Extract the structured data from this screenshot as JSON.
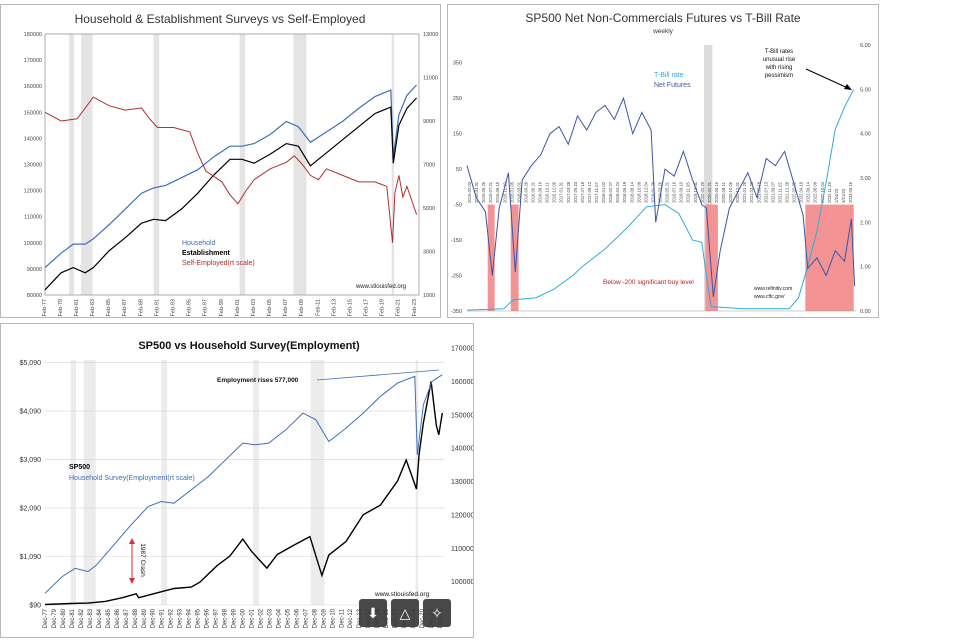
{
  "chart_data": [
    {
      "type": "line",
      "title": "Household & Establishment Surveys vs Self-Employed",
      "left_ticks": [
        "80000",
        "90000",
        "100000",
        "110000",
        "120000",
        "130000",
        "140000",
        "150000",
        "160000",
        "170000",
        "180000"
      ],
      "right_ticks": [
        "1000",
        "3000",
        "5000",
        "7000",
        "9000",
        "11000",
        "13000"
      ],
      "x_ticks": [
        "Feb-77",
        "Feb-79",
        "Feb-81",
        "Feb-83",
        "Feb-85",
        "Feb-87",
        "Feb-89",
        "Feb-91",
        "Feb-93",
        "Feb-95",
        "Feb-97",
        "Feb-99",
        "Feb-01",
        "Feb-03",
        "Feb-05",
        "Feb-07",
        "Feb-09",
        "Feb-11",
        "Feb-13",
        "Feb-15",
        "Feb-17",
        "Feb-19",
        "Feb-21",
        "Feb-23"
      ],
      "ylim": [
        80000,
        180000
      ],
      "y2lim": [
        1000,
        13000
      ],
      "recessions": [
        [
          1980.0,
          1980.6
        ],
        [
          1981.5,
          1982.9
        ],
        [
          1990.5,
          1991.2
        ],
        [
          2001.2,
          2001.9
        ],
        [
          2007.9,
          2009.5
        ],
        [
          2020.1,
          2020.4
        ]
      ],
      "series": [
        {
          "name": "Household",
          "axis": "left",
          "color": "#3e6fb6",
          "x": [
            1977,
            1979,
            1980.5,
            1982,
            1983,
            1985,
            1987,
            1989,
            1990.5,
            1992,
            1994,
            1996,
            1998,
            2000,
            2001.5,
            2003,
            2005,
            2007,
            2008.5,
            2010,
            2012,
            2014,
            2016,
            2018,
            2020,
            2020.3,
            2021,
            2022,
            2023.2
          ],
          "y": [
            90500,
            96000,
            99500,
            99500,
            101500,
            107000,
            113000,
            119000,
            121000,
            122000,
            125000,
            128000,
            133000,
            137000,
            137000,
            138000,
            141500,
            146500,
            144500,
            138500,
            142500,
            146500,
            151500,
            156000,
            158500,
            133000,
            149000,
            156500,
            160500
          ]
        },
        {
          "name": "Establishment",
          "axis": "left",
          "color": "#000000",
          "x": [
            1977,
            1979,
            1980.5,
            1982,
            1983,
            1985,
            1987,
            1989,
            1990.5,
            1992,
            1994,
            1996,
            1998,
            2000,
            2001.5,
            2003,
            2005,
            2007,
            2008.5,
            2010,
            2012,
            2014,
            2016,
            2018,
            2020,
            2020.3,
            2021,
            2022,
            2023.2
          ],
          "y": [
            82000,
            88500,
            90500,
            88500,
            90500,
            97000,
            102000,
            107500,
            109000,
            108500,
            113000,
            119000,
            126000,
            132000,
            132000,
            130500,
            134000,
            138000,
            137000,
            129500,
            134500,
            139500,
            144500,
            149500,
            152000,
            130500,
            145000,
            151500,
            155500
          ]
        },
        {
          "name": "Self-Employed(rt scale)",
          "axis": "right",
          "color": "#b03030",
          "x": [
            1977,
            1979,
            1981,
            1983,
            1985,
            1987,
            1989,
            1990,
            1991,
            1993,
            1995,
            1996,
            1997,
            1999,
            2000,
            2001,
            2002,
            2003,
            2005,
            2007,
            2008,
            2009,
            2010,
            2011,
            2012,
            2014,
            2016,
            2018,
            2019.5,
            2020.2,
            2020.5,
            2021,
            2021.5,
            2022,
            2023.2
          ],
          "y": [
            9400,
            9000,
            9100,
            10100,
            9700,
            9500,
            9600,
            9100,
            8700,
            8700,
            8500,
            7500,
            6700,
            6200,
            5600,
            5200,
            5800,
            6300,
            6800,
            7100,
            7400,
            7000,
            6500,
            6300,
            6800,
            6500,
            6200,
            6200,
            6000,
            3400,
            5700,
            6500,
            5500,
            6000,
            4700
          ]
        }
      ],
      "legend_labels": [
        "Household",
        "Establishment",
        "Self-Employed(rt scale)"
      ],
      "source": "www.stlouisfed.org"
    },
    {
      "type": "line",
      "title": "SP500 Net Non-Commercials Futures vs T-Bill Rate",
      "subtitle": "weekly",
      "left_ticks": [
        "-350",
        "-250",
        "-150",
        "-50",
        "50",
        "150",
        "250",
        "350"
      ],
      "right_ticks": [
        "0.00",
        "1.00",
        "2.00",
        "3.00",
        "4.00",
        "5.00",
        "6.00"
      ],
      "ylim": [
        -350,
        400
      ],
      "y2lim": [
        0,
        6
      ],
      "x_ticks": [
        "2015.02.03",
        "2015.03.31",
        "2015.05.26",
        "2015.07.21",
        "2015.09.15",
        "2015.11.10",
        "2016.01.05",
        "2016.03.01",
        "2016.04.26",
        "2016.06.21",
        "2016.08.16",
        "2016.10.11",
        "2016.12.06",
        "2017.01.31",
        "2017.03.28",
        "2017.05.23",
        "2017.07.18",
        "2017.09.12",
        "2017.11.07",
        "2018.01.02",
        "2018.02.27",
        "2018.04.24",
        "2018.06.19",
        "2018.08.14",
        "2018.10.09",
        "2018.12.04",
        "2019.01.29",
        "2019.03.26",
        "2019.05.21",
        "2019.07.16",
        "2019.09.10",
        "2019.11.05",
        "2019.12.31",
        "2020.02.25",
        "2020.04.21",
        "2020.06.16",
        "2020.08.11",
        "2020.10.06",
        "2020.12.01",
        "2021.01.26",
        "2021.03.23",
        "2021.05.18",
        "2021.07.13",
        "2021.09.07",
        "2021.11.02",
        "2021.12.28",
        "2022.02.22",
        "2022.04.19",
        "2022.06.14",
        "2022.08.09",
        "2022.10.04",
        "2022.11.29",
        "1/24/23",
        "3/21/23",
        "2023.05.16"
      ],
      "xlim": [
        2015.0,
        2023.45
      ],
      "shaded_gray": [
        [
          2020.15,
          2020.33
        ]
      ],
      "shaded_red": [
        [
          2015.45,
          2015.6
        ],
        [
          2015.95,
          2016.12
        ],
        [
          2020.18,
          2020.45
        ],
        [
          2022.35,
          2023.4
        ]
      ],
      "series": [
        {
          "name": "T-Bill rate",
          "axis": "right",
          "color": "#34a9dd",
          "x": [
            2015.0,
            2015.8,
            2016.0,
            2016.5,
            2016.9,
            2017.3,
            2017.5,
            2018.0,
            2018.5,
            2018.9,
            2019.3,
            2019.6,
            2019.9,
            2020.1,
            2020.2,
            2020.3,
            2021.0,
            2021.5,
            2022.0,
            2022.2,
            2022.4,
            2022.6,
            2022.8,
            2023.0,
            2023.2,
            2023.4
          ],
          "y": [
            0.02,
            0.05,
            0.25,
            0.3,
            0.5,
            0.8,
            1.0,
            1.4,
            1.9,
            2.35,
            2.4,
            2.2,
            1.6,
            1.55,
            0.8,
            0.1,
            0.05,
            0.05,
            0.05,
            0.3,
            1.0,
            1.8,
            2.9,
            4.1,
            4.6,
            5.0
          ]
        },
        {
          "name": "Net Futures",
          "axis": "left",
          "color": "#3a57a3",
          "x": [
            2015.0,
            2015.2,
            2015.4,
            2015.55,
            2015.7,
            2015.9,
            2016.05,
            2016.2,
            2016.4,
            2016.6,
            2016.8,
            2017.0,
            2017.2,
            2017.4,
            2017.6,
            2017.8,
            2018.0,
            2018.2,
            2018.4,
            2018.6,
            2018.8,
            2019.0,
            2019.1,
            2019.3,
            2019.5,
            2019.7,
            2019.9,
            2020.1,
            2020.2,
            2020.35,
            2020.5,
            2020.7,
            2020.9,
            2021.1,
            2021.3,
            2021.5,
            2021.7,
            2021.9,
            2022.1,
            2022.3,
            2022.4,
            2022.6,
            2022.8,
            2023.0,
            2023.2,
            2023.35,
            2023.42
          ],
          "y": [
            60,
            -30,
            -70,
            -250,
            -60,
            40,
            -240,
            20,
            60,
            90,
            150,
            170,
            120,
            200,
            160,
            210,
            230,
            190,
            250,
            150,
            210,
            160,
            -100,
            50,
            30,
            100,
            20,
            -50,
            -60,
            -310,
            -180,
            -60,
            -10,
            40,
            -30,
            80,
            60,
            100,
            10,
            -80,
            -230,
            -200,
            -250,
            -180,
            -210,
            -90,
            -280
          ]
        }
      ],
      "legend_labels": [
        "T-Bill rate",
        "Net Futures"
      ],
      "annotation": "T-Bill rates unusual rise with rising pessimism",
      "buy_note": "Below -200 significant buy level",
      "sources": [
        "www.refinitiv.com",
        "www.cftc.gov/"
      ]
    },
    {
      "type": "line",
      "title": "SP500 vs Household Survey(Employment)",
      "left_ticks": [
        "$90",
        "$1,090",
        "$2,090",
        "$3,090",
        "$4,090",
        "$5,090"
      ],
      "right_ticks": [
        "100000",
        "110000",
        "120000",
        "130000",
        "140000",
        "150000",
        "160000",
        "170000"
      ],
      "ylim": [
        90,
        5390
      ],
      "y2lim": [
        93000,
        170000
      ],
      "x_ticks": [
        "Dec-77",
        "Dec-79",
        "Dec-80",
        "Dec-81",
        "Dec-82",
        "Dec-83",
        "Dec-84",
        "Dec-85",
        "Dec-86",
        "Dec-87",
        "Dec-88",
        "Dec-89",
        "Dec-90",
        "Dec-91",
        "Dec-92",
        "Dec-93",
        "Dec-94",
        "Dec-95",
        "Dec-96",
        "Dec-97",
        "Dec-98",
        "Dec-99",
        "Dec-00",
        "Dec-01",
        "Dec-02",
        "Dec-03",
        "Dec-04",
        "Dec-05",
        "Dec-06",
        "Dec-07",
        "Dec-08",
        "Dec-09",
        "Dec-10",
        "Dec-11",
        "Dec-12",
        "Dec-13",
        "Dec-14",
        "Dec-15",
        "Dec-16",
        "Dec-17",
        "Dec-18",
        "Dec-19",
        "Dec-20",
        "Dec-21",
        "Dec-22"
      ],
      "recessions": [
        [
          1980.0,
          1980.6
        ],
        [
          1981.5,
          1982.9
        ],
        [
          1990.5,
          1991.2
        ],
        [
          2001.2,
          2001.9
        ],
        [
          2007.9,
          2009.5
        ],
        [
          2020.1,
          2020.4
        ]
      ],
      "series": [
        {
          "name": "SP500",
          "axis": "left",
          "color": "#000000",
          "x": [
            1977,
            1980,
            1982,
            1984,
            1986,
            1987.6,
            1987.9,
            1990,
            1992,
            1994,
            1995,
            1997,
            1998.5,
            2000,
            2001,
            2002.8,
            2004,
            2006,
            2007.8,
            2009.2,
            2010,
            2012,
            2014,
            2016,
            2018,
            2019,
            2020.2,
            2020.5,
            2021,
            2021.9,
            2022.5,
            2022.8,
            2023.2
          ],
          "y": [
            100,
            120,
            130,
            165,
            240,
            320,
            240,
            340,
            430,
            460,
            560,
            900,
            1100,
            1450,
            1200,
            850,
            1130,
            1330,
            1500,
            700,
            1120,
            1400,
            1950,
            2150,
            2650,
            3080,
            2480,
            3200,
            3850,
            4700,
            3800,
            3600,
            4050
          ]
        },
        {
          "name": "Household Survey(Employment(rt scale)",
          "axis": "right",
          "color": "#3e6fb6",
          "x": [
            1977,
            1979,
            1980.5,
            1982,
            1983,
            1985,
            1987,
            1989,
            1990.5,
            1992,
            1994,
            1996,
            1998,
            2000,
            2001.5,
            2003,
            2005,
            2007,
            2008.5,
            2010,
            2012,
            2014,
            2016,
            2018,
            2020,
            2020.3,
            2021,
            2022,
            2023.2
          ],
          "y": [
            96500,
            101500,
            104000,
            103000,
            105000,
            111000,
            117000,
            122500,
            124000,
            123500,
            127500,
            131500,
            136500,
            141500,
            141000,
            141500,
            145500,
            150500,
            148500,
            142000,
            146000,
            150500,
            155500,
            159500,
            161500,
            138000,
            153000,
            160000,
            162000
          ]
        }
      ],
      "legend_labels": [
        "SP500",
        "Household Survey(Employment(rt scale)"
      ],
      "annotations": [
        "Employment rises 577,000",
        "1987 Crash"
      ],
      "source": "www.stlouisfed.org"
    }
  ]
}
